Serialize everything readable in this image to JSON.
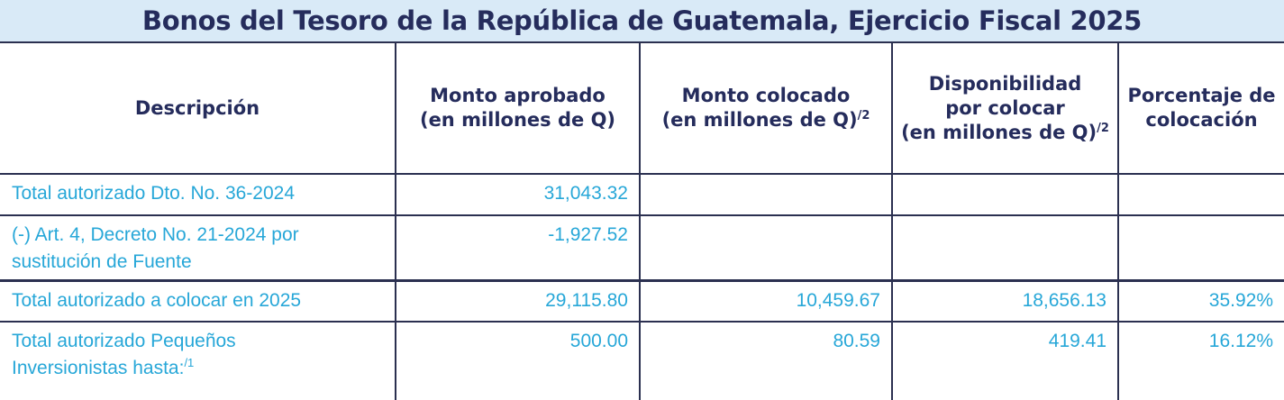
{
  "title": "Bonos del Tesoro de la República de Guatemala, Ejercicio Fiscal 2025",
  "headers": {
    "descripcion": "Descripción",
    "aprobado_l1": "Monto aprobado",
    "aprobado_l2": "(en millones de Q)",
    "colocado_l1": "Monto colocado",
    "colocado_l2": "(en millones de Q)",
    "colocado_sup": "/2",
    "disp_l1": "Disponibilidad",
    "disp_l2": "por colocar",
    "disp_l3": "(en millones de Q)",
    "disp_sup": "/2",
    "porc_l1": "Porcentaje de",
    "porc_l2": "colocación"
  },
  "rows": [
    {
      "desc_l1": "Total autorizado Dto. No. 36-2024",
      "desc_l2": "",
      "desc_sup": "",
      "aprobado": "31,043.32",
      "colocado": "",
      "disponible": "",
      "porcentaje": ""
    },
    {
      "desc_l1": "(-) Art. 4, Decreto No. 21-2024 por",
      "desc_l2": "sustitución de Fuente",
      "desc_sup": "",
      "aprobado": "-1,927.52",
      "colocado": "",
      "disponible": "",
      "porcentaje": ""
    },
    {
      "desc_l1": "Total autorizado a colocar en 2025",
      "desc_l2": "",
      "desc_sup": "",
      "aprobado": "29,115.80",
      "colocado": "10,459.67",
      "disponible": "18,656.13",
      "porcentaje": "35.92%"
    },
    {
      "desc_l1": "Total autorizado Pequeños",
      "desc_l2": "Inversionistas hasta:",
      "desc_sup": "/1",
      "aprobado": "500.00",
      "colocado": "80.59",
      "disponible": "419.41",
      "porcentaje": "16.12%"
    }
  ]
}
